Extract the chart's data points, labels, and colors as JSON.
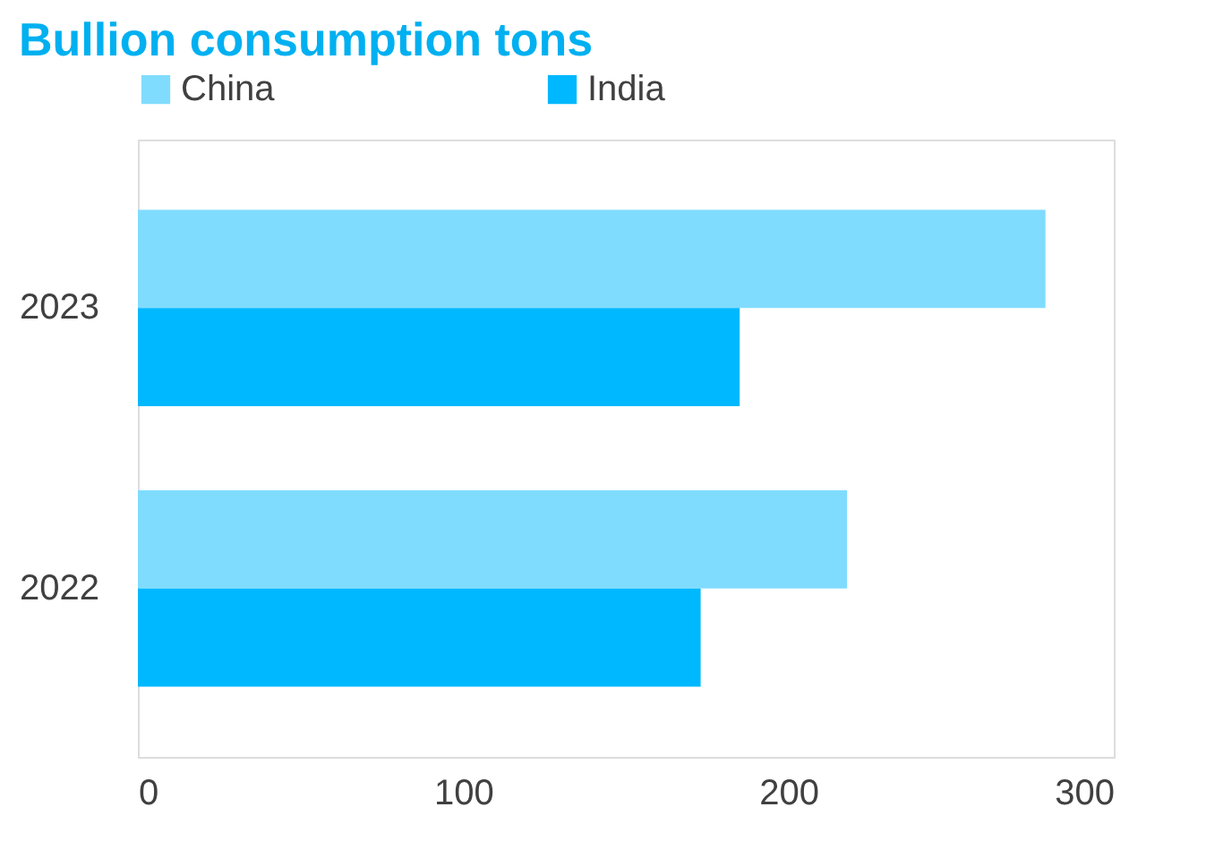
{
  "chart_data": {
    "type": "bar",
    "orientation": "horizontal",
    "title": "Bullion consumption tons",
    "categories": [
      "2023",
      "2022"
    ],
    "series": [
      {
        "name": "China",
        "color": "#80dcff",
        "values": [
          279,
          218
        ]
      },
      {
        "name": "India",
        "color": "#00b8ff",
        "values": [
          185,
          173
        ]
      }
    ],
    "xlim": [
      0,
      300
    ],
    "xticks": [
      0,
      100,
      200,
      300
    ],
    "grid": false,
    "legend": "top"
  }
}
